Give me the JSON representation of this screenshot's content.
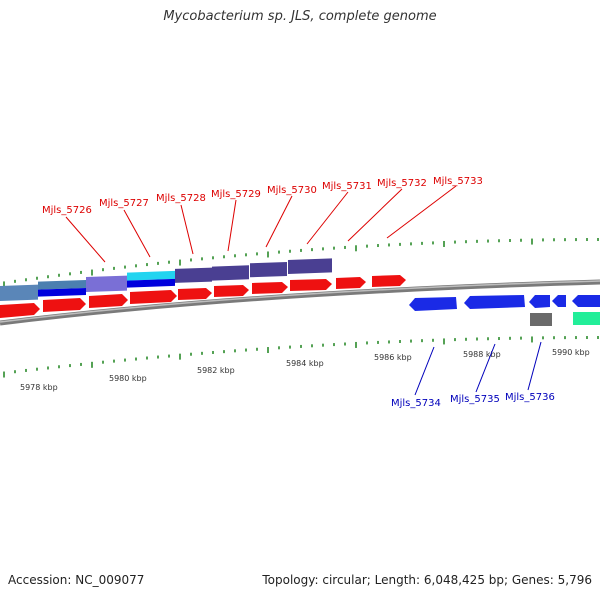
{
  "title": "Mycobacterium sp. JLS, complete genome",
  "footer": {
    "accession": "Accession: NC_009077",
    "stats": "Topology: circular; Length: 6,048,425 bp; Genes: 5,796"
  },
  "colors": {
    "forward_label": "#dd0000",
    "reverse_label": "#0000bb",
    "tick": "#2a8a2a",
    "backbone": "#8c8c8c"
  },
  "ruler_labels": [
    "5978 kbp",
    "5980 kbp",
    "5982 kbp",
    "5984 kbp",
    "5986 kbp",
    "5988 kbp",
    "5990 kbp"
  ],
  "forward_labels": [
    "Mjls_5726",
    "Mjls_5727",
    "Mjls_5728",
    "Mjls_5729",
    "Mjls_5730",
    "Mjls_5731",
    "Mjls_5732",
    "Mjls_5733"
  ],
  "reverse_labels": [
    "Mjls_5734",
    "Mjls_5735",
    "Mjls_5736"
  ]
}
